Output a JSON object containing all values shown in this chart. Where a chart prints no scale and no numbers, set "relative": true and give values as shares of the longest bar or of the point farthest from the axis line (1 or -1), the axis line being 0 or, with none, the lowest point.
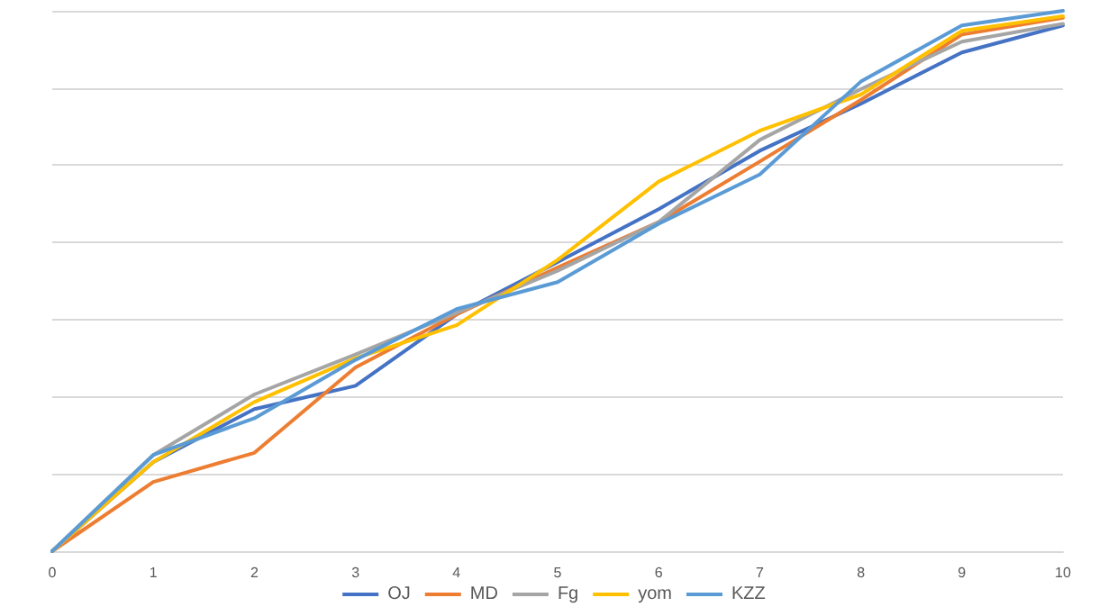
{
  "chart_data": {
    "type": "line",
    "relative": true,
    "grid": "y",
    "legend": "bottom",
    "marker": "none",
    "line_style": "solid",
    "categories": [
      "0",
      "1",
      "2",
      "3",
      "4",
      "5",
      "6",
      "7",
      "8",
      "9",
      "10"
    ],
    "series": [
      {
        "name": "OJ",
        "color": "#4472c4",
        "values": [
          0,
          0.165,
          0.263,
          0.306,
          0.438,
          0.535,
          0.633,
          0.741,
          0.828,
          0.923,
          0.973
        ]
      },
      {
        "name": "MD",
        "color": "#ed7d31",
        "values": [
          0,
          0.128,
          0.182,
          0.34,
          0.438,
          0.525,
          0.609,
          0.721,
          0.835,
          0.956,
          0.987
        ]
      },
      {
        "name": "Fg",
        "color": "#a5a5a5",
        "values": [
          0,
          0.178,
          0.29,
          0.364,
          0.441,
          0.519,
          0.609,
          0.761,
          0.855,
          0.943,
          0.976
        ]
      },
      {
        "name": "yom",
        "color": "#ffc000",
        "values": [
          0,
          0.165,
          0.276,
          0.357,
          0.418,
          0.539,
          0.684,
          0.778,
          0.845,
          0.963,
          0.99
        ]
      },
      {
        "name": "KZZ",
        "color": "#5b9bd5",
        "values": [
          0,
          0.178,
          0.246,
          0.354,
          0.448,
          0.498,
          0.606,
          0.697,
          0.869,
          0.973,
          1
        ]
      }
    ]
  }
}
